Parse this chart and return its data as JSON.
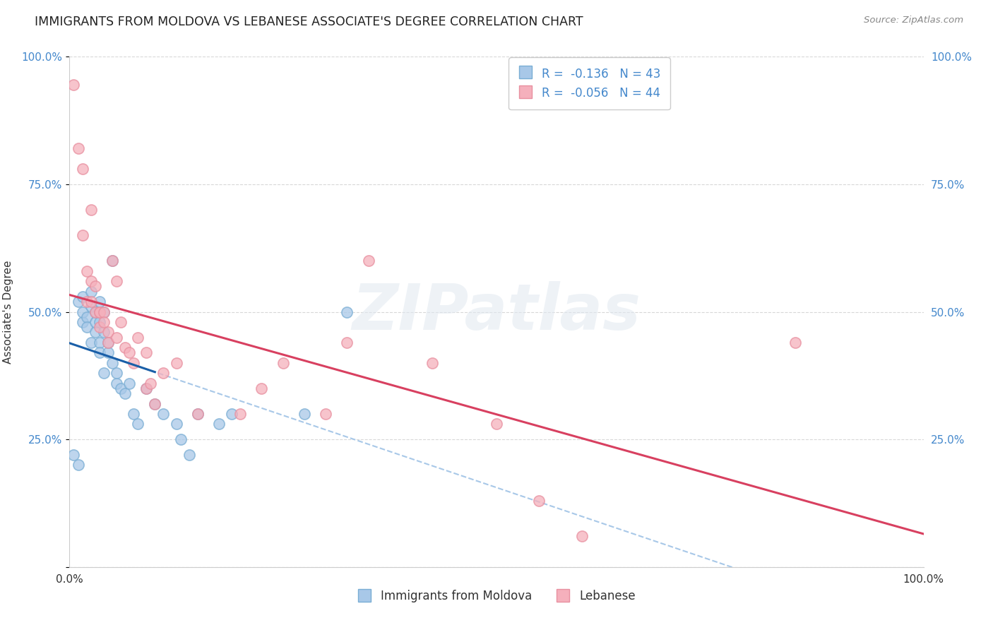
{
  "title": "IMMIGRANTS FROM MOLDOVA VS LEBANESE ASSOCIATE'S DEGREE CORRELATION CHART",
  "source": "Source: ZipAtlas.com",
  "ylabel": "Associate's Degree",
  "moldova_color": "#a8c8e8",
  "moldova_edge": "#7aaed4",
  "lebanese_color": "#f5b0bc",
  "lebanese_edge": "#e890a0",
  "moldova_line_color": "#1a5fa8",
  "lebanese_line_color": "#d84060",
  "dashed_line_color": "#a8c8e8",
  "bg_color": "#ffffff",
  "grid_color": "#d8d8d8",
  "r1_label": "R =  -0.136   N = 43",
  "r2_label": "R =  -0.056   N = 44",
  "moldova_label": "Immigrants from Moldova",
  "lebanese_label": "Lebanese",
  "moldova_x": [
    0.5,
    1.0,
    1.0,
    1.5,
    1.5,
    1.5,
    2.0,
    2.0,
    2.5,
    2.5,
    2.5,
    3.0,
    3.0,
    3.0,
    3.5,
    3.5,
    3.5,
    3.5,
    4.0,
    4.0,
    4.0,
    4.5,
    4.5,
    5.0,
    5.0,
    5.5,
    5.5,
    6.0,
    6.5,
    7.0,
    7.5,
    8.0,
    9.0,
    10.0,
    11.0,
    12.5,
    13.0,
    14.0,
    15.0,
    17.5,
    19.0,
    27.5,
    32.5
  ],
  "moldova_y": [
    0.22,
    0.2,
    0.52,
    0.48,
    0.5,
    0.53,
    0.49,
    0.47,
    0.44,
    0.51,
    0.54,
    0.46,
    0.48,
    0.5,
    0.52,
    0.48,
    0.44,
    0.42,
    0.5,
    0.46,
    0.38,
    0.42,
    0.44,
    0.6,
    0.4,
    0.36,
    0.38,
    0.35,
    0.34,
    0.36,
    0.3,
    0.28,
    0.35,
    0.32,
    0.3,
    0.28,
    0.25,
    0.22,
    0.3,
    0.28,
    0.3,
    0.3,
    0.5
  ],
  "lebanese_x": [
    0.5,
    1.0,
    1.5,
    1.5,
    2.0,
    2.0,
    2.5,
    2.5,
    2.5,
    3.0,
    3.0,
    3.5,
    3.5,
    3.5,
    4.0,
    4.0,
    4.5,
    4.5,
    5.0,
    5.5,
    5.5,
    6.0,
    6.5,
    7.0,
    7.5,
    8.0,
    9.0,
    9.0,
    9.5,
    10.0,
    11.0,
    12.5,
    15.0,
    20.0,
    22.5,
    25.0,
    30.0,
    32.5,
    35.0,
    42.5,
    50.0,
    55.0,
    85.0,
    60.0
  ],
  "lebanese_y": [
    0.945,
    0.82,
    0.78,
    0.65,
    0.58,
    0.52,
    0.56,
    0.52,
    0.7,
    0.55,
    0.5,
    0.5,
    0.5,
    0.47,
    0.5,
    0.48,
    0.46,
    0.44,
    0.6,
    0.56,
    0.45,
    0.48,
    0.43,
    0.42,
    0.4,
    0.45,
    0.42,
    0.35,
    0.36,
    0.32,
    0.38,
    0.4,
    0.3,
    0.3,
    0.35,
    0.4,
    0.3,
    0.44,
    0.6,
    0.4,
    0.28,
    0.13,
    0.44,
    0.06
  ],
  "xlim": [
    0,
    100
  ],
  "ylim": [
    0,
    1.0
  ],
  "xticks": [
    0,
    100
  ],
  "xticklabels": [
    "0.0%",
    "100.0%"
  ],
  "yticks_left": [
    0.0,
    0.25,
    0.5,
    0.75,
    1.0
  ],
  "ytick_labels_left": [
    "",
    "25.0%",
    "50.0%",
    "75.0%",
    "100.0%"
  ],
  "yticks_right": [
    0.25,
    0.5,
    0.75,
    1.0
  ],
  "ytick_labels_right": [
    "25.0%",
    "50.0%",
    "75.0%",
    "100.0%"
  ],
  "marker_size": 120,
  "title_fontsize": 12.5,
  "axis_fontsize": 11,
  "legend_fontsize": 12,
  "tick_color": "#4488cc",
  "watermark": "ZIPatlas"
}
